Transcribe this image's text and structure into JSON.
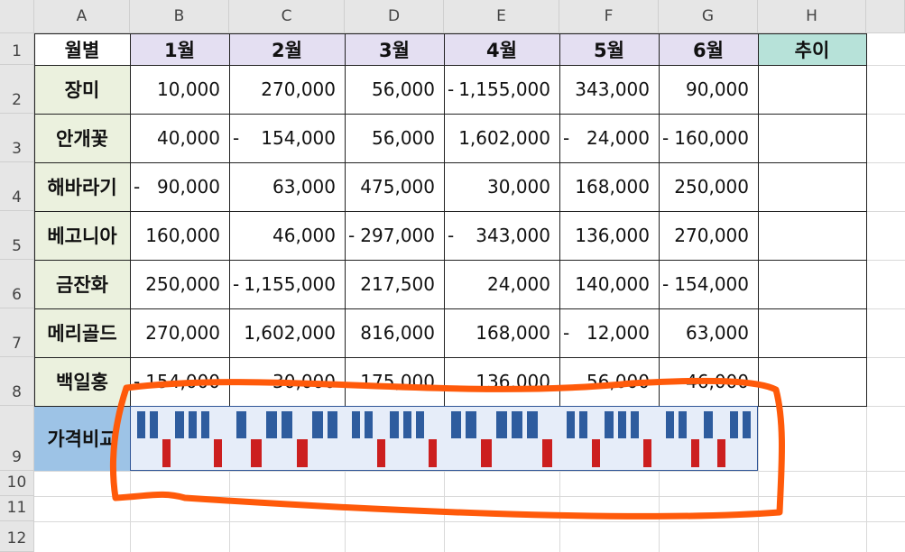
{
  "column_headers": [
    "A",
    "B",
    "C",
    "D",
    "E",
    "F",
    "G",
    "H"
  ],
  "row_headers": [
    "1",
    "2",
    "3",
    "4",
    "5",
    "6",
    "7",
    "8",
    "9",
    "10",
    "11",
    "12"
  ],
  "header_row": {
    "label": "월별",
    "months": [
      "1월",
      "2월",
      "3월",
      "4월",
      "5월",
      "6월"
    ],
    "trend": "추이"
  },
  "rows": [
    {
      "name": "장미",
      "values": [
        {
          "s": "",
          "v": "10,000"
        },
        {
          "s": "",
          "v": "270,000"
        },
        {
          "s": "",
          "v": "56,000"
        },
        {
          "s": "-",
          "v": "1,155,000"
        },
        {
          "s": "",
          "v": "343,000"
        },
        {
          "s": "",
          "v": "90,000"
        }
      ]
    },
    {
      "name": "안개꽃",
      "values": [
        {
          "s": "",
          "v": "40,000"
        },
        {
          "s": "-",
          "v": "154,000"
        },
        {
          "s": "",
          "v": "56,000"
        },
        {
          "s": "",
          "v": "1,602,000"
        },
        {
          "s": "-",
          "v": "24,000"
        },
        {
          "s": "-",
          "v": "160,000"
        }
      ]
    },
    {
      "name": "해바라기",
      "values": [
        {
          "s": "-",
          "v": "90,000"
        },
        {
          "s": "",
          "v": "63,000"
        },
        {
          "s": "",
          "v": "475,000"
        },
        {
          "s": "",
          "v": "30,000"
        },
        {
          "s": "",
          "v": "168,000"
        },
        {
          "s": "",
          "v": "250,000"
        }
      ]
    },
    {
      "name": "베고니아",
      "values": [
        {
          "s": "",
          "v": "160,000"
        },
        {
          "s": "",
          "v": "46,000"
        },
        {
          "s": "-",
          "v": "297,000"
        },
        {
          "s": "-",
          "v": "343,000"
        },
        {
          "s": "",
          "v": "136,000"
        },
        {
          "s": "",
          "v": "270,000"
        }
      ]
    },
    {
      "name": "금잔화",
      "values": [
        {
          "s": "",
          "v": "250,000"
        },
        {
          "s": "-",
          "v": "1,155,000"
        },
        {
          "s": "",
          "v": "217,500"
        },
        {
          "s": "",
          "v": "24,000"
        },
        {
          "s": "",
          "v": "140,000"
        },
        {
          "s": "-",
          "v": "154,000"
        }
      ]
    },
    {
      "name": "메리골드",
      "values": [
        {
          "s": "",
          "v": "270,000"
        },
        {
          "s": "",
          "v": "1,602,000"
        },
        {
          "s": "",
          "v": "816,000"
        },
        {
          "s": "",
          "v": "168,000"
        },
        {
          "s": "-",
          "v": "12,000"
        },
        {
          "s": "",
          "v": "63,000"
        }
      ]
    },
    {
      "name": "백일홍",
      "values": [
        {
          "s": "-",
          "v": "154,000"
        },
        {
          "s": "",
          "v": "30,000"
        },
        {
          "s": "",
          "v": "175,000"
        },
        {
          "s": "",
          "v": "136,000"
        },
        {
          "s": "",
          "v": "56,000"
        },
        {
          "s": "",
          "v": "46,000"
        }
      ]
    }
  ],
  "compare_row_label": "가격비교",
  "sparkline_pattern": [
    [
      1,
      1,
      0,
      1,
      1,
      1,
      0
    ],
    [
      1,
      0,
      1,
      1,
      0,
      1,
      1
    ],
    [
      1,
      1,
      0,
      1,
      1,
      1,
      0
    ],
    [
      1,
      1,
      0,
      1,
      1,
      1,
      0
    ],
    [
      1,
      1,
      0,
      1,
      1,
      1,
      0
    ],
    [
      1,
      1,
      0,
      1,
      0,
      1,
      1
    ]
  ],
  "colors": {
    "month_header_bg": "#e4dff2",
    "trend_header_bg": "#b7e2d9",
    "row_label_bg": "#ebf1de",
    "compare_label_bg": "#9dc3e6",
    "sparkline_cell_bg": "#e6edf9",
    "positive_bar": "#2e5c9e",
    "negative_bar": "#cc1f1f",
    "annotation": "#ff5a0a"
  }
}
